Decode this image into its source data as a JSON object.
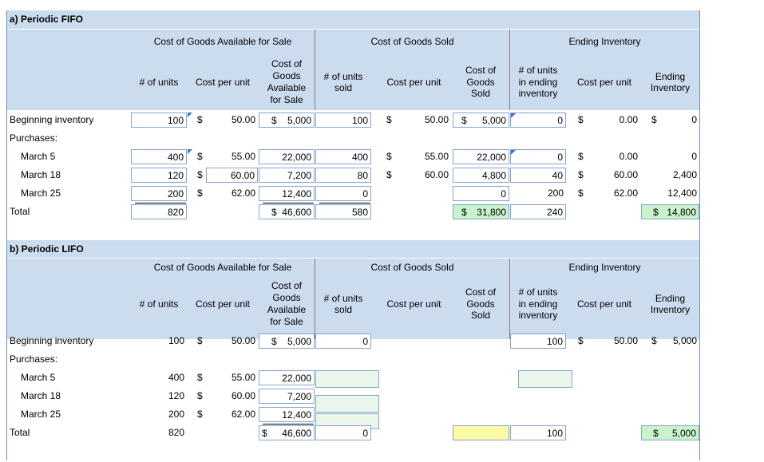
{
  "fifo": {
    "title": "a) Periodic FIFO",
    "groups": [
      "Cost of Goods Available for Sale",
      "Cost of Goods Sold",
      "Ending Inventory"
    ],
    "cols": {
      "units": "# of units",
      "cpu": "Cost per unit",
      "cogafs": [
        "Cost of",
        "Goods",
        "Available",
        "for Sale"
      ],
      "sold": [
        "# of units",
        "sold"
      ],
      "cpu2": "Cost per unit",
      "cogs": [
        "Cost of",
        "Goods",
        "Sold"
      ],
      "end_units": [
        "# of units",
        "in ending",
        "inventory"
      ],
      "cpu3": "Cost per unit",
      "end_inv": [
        "Ending",
        "Inventory"
      ]
    },
    "rows": {
      "beginning": {
        "label": "Beginning inventory",
        "units": "100",
        "cur": "$",
        "cpu": "50.00",
        "cost": "5,000",
        "sold": "100",
        "cpu2": "50.00",
        "cogs": "5,000",
        "end_units": "0",
        "cpu3": "0.00",
        "end_inv": "0"
      },
      "purchases": {
        "label": "Purchases:"
      },
      "m5": {
        "label": "March 5",
        "units": "400",
        "cur": "$",
        "cpu": "55.00",
        "cost": "22,000",
        "sold": "400",
        "cpu2": "55.00",
        "cogs": "22,000",
        "end_units": "0",
        "cpu3": "0.00",
        "end_inv": "0"
      },
      "m18": {
        "label": "March 18",
        "units": "120",
        "cur": "$",
        "cpu": "60.00",
        "cost": "7,200",
        "sold": "80",
        "cpu2": "60.00",
        "cogs": "4,800",
        "end_units": "40",
        "cpu3": "60.00",
        "end_inv": "2,400"
      },
      "m25": {
        "label": "March 25",
        "units": "200",
        "cur": "$",
        "cpu": "62.00",
        "cost": "12,400",
        "sold": "0",
        "cogs": "0",
        "end_units": "200",
        "cpu3": "62.00",
        "end_inv": "12,400"
      },
      "total": {
        "label": "Total",
        "units": "820",
        "cost": "46,600",
        "sold": "580",
        "cogs": "31,800",
        "end_units": "240",
        "end_inv": "14,800"
      }
    }
  },
  "lifo": {
    "title": "b) Periodic LIFO",
    "groups": [
      "Cost of Goods Available for Sale",
      "Cost of Goods Sold",
      "Ending Inventory"
    ],
    "cols": {
      "units": "# of units",
      "cpu": "Cost per unit",
      "cogafs": [
        "Cost of",
        "Goods",
        "Available",
        "for Sale"
      ],
      "sold": [
        "# of units",
        "sold"
      ],
      "cpu2": "Cost per unit",
      "cogs": [
        "Cost of",
        "Goods",
        "Sold"
      ],
      "end_units": [
        "# of units",
        "in ending",
        "inventory"
      ],
      "cpu3": "Cost per unit",
      "end_inv": [
        "Ending",
        "Inventory"
      ]
    },
    "rows": {
      "beginning": {
        "label": "Beginning inventory",
        "units": "100",
        "cur": "$",
        "cpu": "50.00",
        "cost": "5,000",
        "sold": "0",
        "end_units": "100",
        "cpu3": "50.00",
        "end_inv": "5,000"
      },
      "purchases": {
        "label": "Purchases:"
      },
      "m5": {
        "label": "March 5",
        "units": "400",
        "cur": "$",
        "cpu": "55.00",
        "cost": "22,000"
      },
      "m18": {
        "label": "March 18",
        "units": "120",
        "cur": "$",
        "cpu": "60.00",
        "cost": "7,200"
      },
      "m25": {
        "label": "March 25",
        "units": "200",
        "cur": "$",
        "cpu": "62.00",
        "cost": "12,400"
      },
      "total": {
        "label": "Total",
        "units": "820",
        "cost": "46,600",
        "sold": "0",
        "end_units": "100",
        "end_inv": "5,000"
      }
    }
  }
}
